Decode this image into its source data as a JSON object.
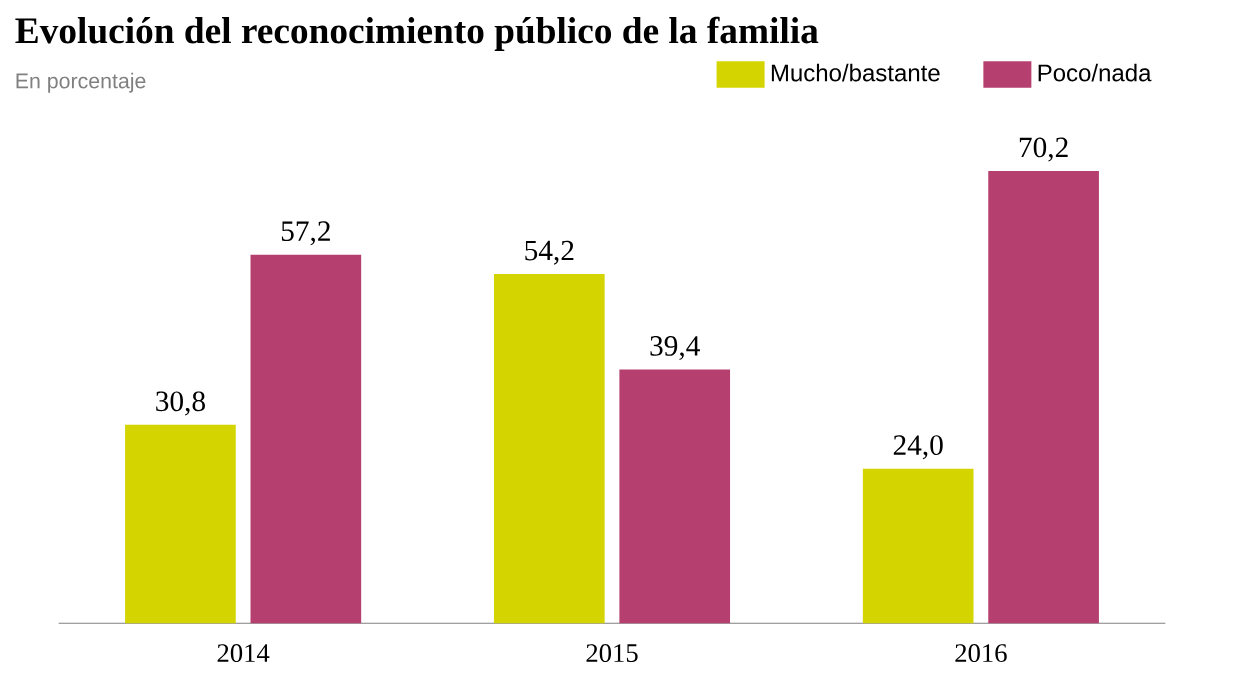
{
  "chart_data": {
    "type": "bar",
    "title": "Evolución del reconocimiento público de la familia",
    "subtitle": "En porcentaje",
    "categories": [
      "2014",
      "2015",
      "2016"
    ],
    "series": [
      {
        "name": "Mucho/bastante",
        "color": "#d4d400",
        "values": [
          30.8,
          54.2,
          24.0
        ],
        "value_labels": [
          "30,8",
          "54,2",
          "24,0"
        ]
      },
      {
        "name": "Poco/nada",
        "color": "#b5406f",
        "values": [
          57.2,
          39.4,
          70.2
        ],
        "value_labels": [
          "57,2",
          "39,4",
          "70,2"
        ]
      }
    ],
    "legend": "top right"
  }
}
